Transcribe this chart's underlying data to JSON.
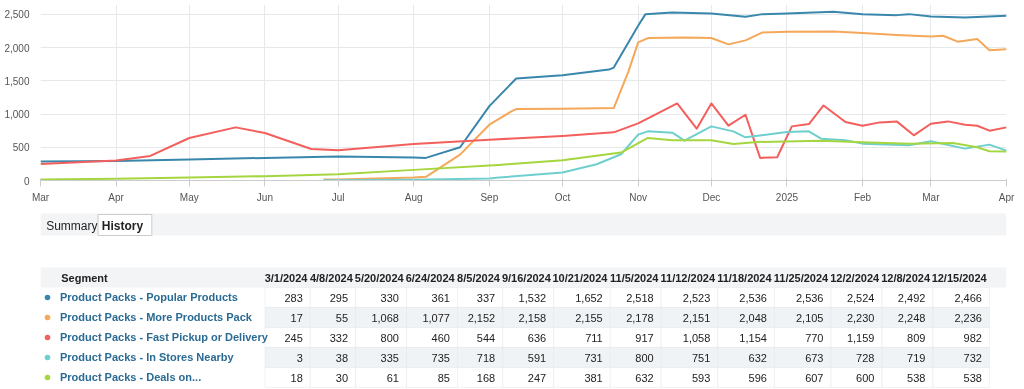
{
  "chart_data": [
    {
      "type": "line",
      "xlim": [
        "2024-03-01",
        "2025-04-01"
      ],
      "ylim": [
        0,
        2650
      ],
      "xticks": [
        {
          "value": "2024-03-01",
          "label": "Mar"
        },
        {
          "value": "2024-04-01",
          "label": "Apr"
        },
        {
          "value": "2024-05-01",
          "label": "May"
        },
        {
          "value": "2024-06-01",
          "label": "Jun"
        },
        {
          "value": "2024-07-01",
          "label": "Jul"
        },
        {
          "value": "2024-08-01",
          "label": "Aug"
        },
        {
          "value": "2024-09-01",
          "label": "Sep"
        },
        {
          "value": "2024-10-01",
          "label": "Oct"
        },
        {
          "value": "2024-11-01",
          "label": "Nov"
        },
        {
          "value": "2024-12-01",
          "label": "Dec"
        },
        {
          "value": "2025-01-01",
          "label": "2025"
        },
        {
          "value": "2025-02-01",
          "label": "Feb"
        },
        {
          "value": "2025-03-01",
          "label": "Mar"
        },
        {
          "value": "2025-04-01",
          "label": "Apr"
        }
      ],
      "yticks": [
        0,
        500,
        {
          "value": 1000,
          "label": "1,000"
        },
        {
          "value": 1500,
          "label": "1,500"
        },
        {
          "value": 2000,
          "label": "2,000"
        },
        {
          "value": 2500,
          "label": "2,500"
        }
      ],
      "grid": true,
      "marker": "none",
      "line_style": "solid",
      "series": [
        {
          "color": "#3a87ad",
          "x": [
            "2024-03-01",
            "2024-04-01",
            "2024-05-01",
            "2024-06-01",
            "2024-07-01",
            "2024-08-01",
            "2024-08-06",
            "2024-08-20",
            "2024-09-01",
            "2024-09-10",
            "2024-09-12",
            "2024-10-01",
            "2024-10-20",
            "2024-10-22",
            "2024-11-01",
            "2024-11-04",
            "2024-11-15",
            "2024-12-01",
            "2024-12-15",
            "2024-12-22",
            "2025-01-01",
            "2025-01-20",
            "2025-02-01",
            "2025-02-15",
            "2025-02-20",
            "2025-03-01",
            "2025-03-15",
            "2025-04-01"
          ],
          "values": [
            285,
            295,
            315,
            340,
            360,
            345,
            340,
            500,
            1120,
            1460,
            1535,
            1585,
            1670,
            1700,
            2330,
            2505,
            2530,
            2515,
            2465,
            2505,
            2515,
            2540,
            2505,
            2490,
            2505,
            2470,
            2455,
            2480
          ]
        },
        {
          "color": "#f5a85a",
          "x": [
            "2024-06-25",
            "2024-07-01",
            "2024-08-01",
            "2024-08-06",
            "2024-08-20",
            "2024-09-01",
            "2024-09-10",
            "2024-09-12",
            "2024-10-01",
            "2024-10-22",
            "2024-10-28",
            "2024-11-01",
            "2024-11-05",
            "2024-11-20",
            "2024-12-01",
            "2024-12-08",
            "2024-12-15",
            "2024-12-22",
            "2025-01-01",
            "2025-01-20",
            "2025-02-01",
            "2025-02-15",
            "2025-03-01",
            "2025-03-06",
            "2025-03-12",
            "2025-03-20",
            "2025-03-25",
            "2025-04-01"
          ],
          "values": [
            15,
            15,
            45,
            55,
            390,
            840,
            1040,
            1075,
            1080,
            1090,
            1640,
            2080,
            2145,
            2155,
            2145,
            2050,
            2110,
            2230,
            2240,
            2245,
            2220,
            2190,
            2170,
            2180,
            2090,
            2130,
            1960,
            1975
          ]
        },
        {
          "color": "#f25f5c",
          "x": [
            "2024-03-01",
            "2024-04-01",
            "2024-04-15",
            "2024-05-01",
            "2024-05-20",
            "2024-06-01",
            "2024-06-20",
            "2024-07-01",
            "2024-08-01",
            "2024-09-01",
            "2024-10-01",
            "2024-10-22",
            "2024-11-01",
            "2024-11-17",
            "2024-11-25",
            "2024-12-01",
            "2024-12-08",
            "2024-12-15",
            "2024-12-21",
            "2024-12-28",
            "2025-01-03",
            "2025-01-10",
            "2025-01-16",
            "2025-01-25",
            "2025-02-01",
            "2025-02-08",
            "2025-02-15",
            "2025-02-22",
            "2025-03-01",
            "2025-03-08",
            "2025-03-15",
            "2025-03-20",
            "2025-03-25",
            "2025-04-01"
          ],
          "values": [
            250,
            300,
            370,
            640,
            800,
            715,
            475,
            455,
            550,
            615,
            670,
            725,
            860,
            1160,
            780,
            1160,
            825,
            990,
            340,
            350,
            815,
            850,
            1130,
            880,
            825,
            875,
            890,
            680,
            855,
            890,
            840,
            825,
            750,
            800
          ]
        },
        {
          "color": "#6fcfce",
          "x": [
            "2024-06-25",
            "2024-08-01",
            "2024-09-01",
            "2024-09-05",
            "2024-10-01",
            "2024-10-15",
            "2024-10-25",
            "2024-11-01",
            "2024-11-05",
            "2024-11-15",
            "2024-11-20",
            "2024-12-01",
            "2024-12-10",
            "2024-12-15",
            "2025-01-01",
            "2025-01-10",
            "2025-01-15",
            "2025-01-25",
            "2025-02-01",
            "2025-02-20",
            "2025-03-01",
            "2025-03-15",
            "2025-03-25",
            "2025-04-01"
          ],
          "values": [
            5,
            10,
            30,
            45,
            120,
            245,
            395,
            690,
            740,
            720,
            600,
            815,
            740,
            650,
            730,
            740,
            630,
            605,
            555,
            530,
            590,
            480,
            540,
            450
          ]
        },
        {
          "color": "#a5d63f",
          "x": [
            "2024-03-01",
            "2024-04-01",
            "2024-05-01",
            "2024-06-01",
            "2024-07-01",
            "2024-08-01",
            "2024-09-01",
            "2024-09-05",
            "2024-10-01",
            "2024-10-25",
            "2024-11-05",
            "2024-11-15",
            "2024-12-01",
            "2024-12-10",
            "2024-12-20",
            "2025-01-15",
            "2025-02-01",
            "2025-02-20",
            "2025-03-10",
            "2025-03-20",
            "2025-03-25",
            "2025-04-01"
          ],
          "values": [
            15,
            25,
            45,
            65,
            95,
            160,
            225,
            235,
            305,
            420,
            640,
            605,
            605,
            550,
            580,
            600,
            575,
            555,
            565,
            500,
            440,
            435
          ]
        }
      ]
    },
    {
      "type": "heatmap",
      "ylabel": "Segment",
      "annotations": [
        "Summary",
        "History"
      ],
      "categories": [
        "3/1/2024",
        "4/8/2024",
        "5/20/2024",
        "6/24/2024",
        "8/5/2024",
        "9/16/2024",
        "10/21/2024",
        "11/5/2024",
        "11/12/2024",
        "11/18/2024",
        "11/25/2024",
        "12/2/2024",
        "12/8/2024",
        "12/15/2024"
      ],
      "y_categories": [
        "Product Packs - Popular Products",
        "Product Packs - More Products Pack",
        "Product Packs - Fast Pickup or Delivery",
        "Product Packs - In Stores Nearby",
        "Product Packs - Deals on..."
      ],
      "colors": [
        "#3a87ad",
        "#f5a85a",
        "#f25f5c",
        "#6fcfce",
        "#a5d63f"
      ],
      "data_labels": true,
      "cell_labels": [
        [
          "283",
          "295",
          "330",
          "361",
          "337",
          "1,532",
          "1,652",
          "2,518",
          "2,523",
          "2,536",
          "2,536",
          "2,524",
          "2,492",
          "2,466"
        ],
        [
          "17",
          "55",
          "1,068",
          "1,077",
          "2,152",
          "2,158",
          "2,155",
          "2,178",
          "2,151",
          "2,048",
          "2,105",
          "2,230",
          "2,248",
          "2,236"
        ],
        [
          "245",
          "332",
          "800",
          "460",
          "544",
          "636",
          "711",
          "917",
          "1,058",
          "1,154",
          "770",
          "1,159",
          "809",
          "982"
        ],
        [
          "3",
          "38",
          "335",
          "735",
          "718",
          "591",
          "731",
          "800",
          "751",
          "632",
          "673",
          "728",
          "719",
          "732"
        ],
        [
          "18",
          "30",
          "61",
          "85",
          "168",
          "247",
          "381",
          "632",
          "593",
          "596",
          "607",
          "600",
          "538",
          "538"
        ]
      ],
      "cells": [
        [
          283,
          295,
          330,
          361,
          337,
          1532,
          1652,
          2518,
          2523,
          2536,
          2536,
          2524,
          2492,
          2466
        ],
        [
          17,
          55,
          1068,
          1077,
          2152,
          2158,
          2155,
          2178,
          2151,
          2048,
          2105,
          2230,
          2248,
          2236
        ],
        [
          245,
          332,
          800,
          460,
          544,
          636,
          711,
          917,
          1058,
          1154,
          770,
          1159,
          809,
          982
        ],
        [
          3,
          38,
          335,
          735,
          718,
          591,
          731,
          800,
          751,
          632,
          673,
          728,
          719,
          732
        ],
        [
          18,
          30,
          61,
          85,
          168,
          247,
          381,
          632,
          593,
          596,
          607,
          600,
          538,
          538
        ]
      ]
    }
  ]
}
